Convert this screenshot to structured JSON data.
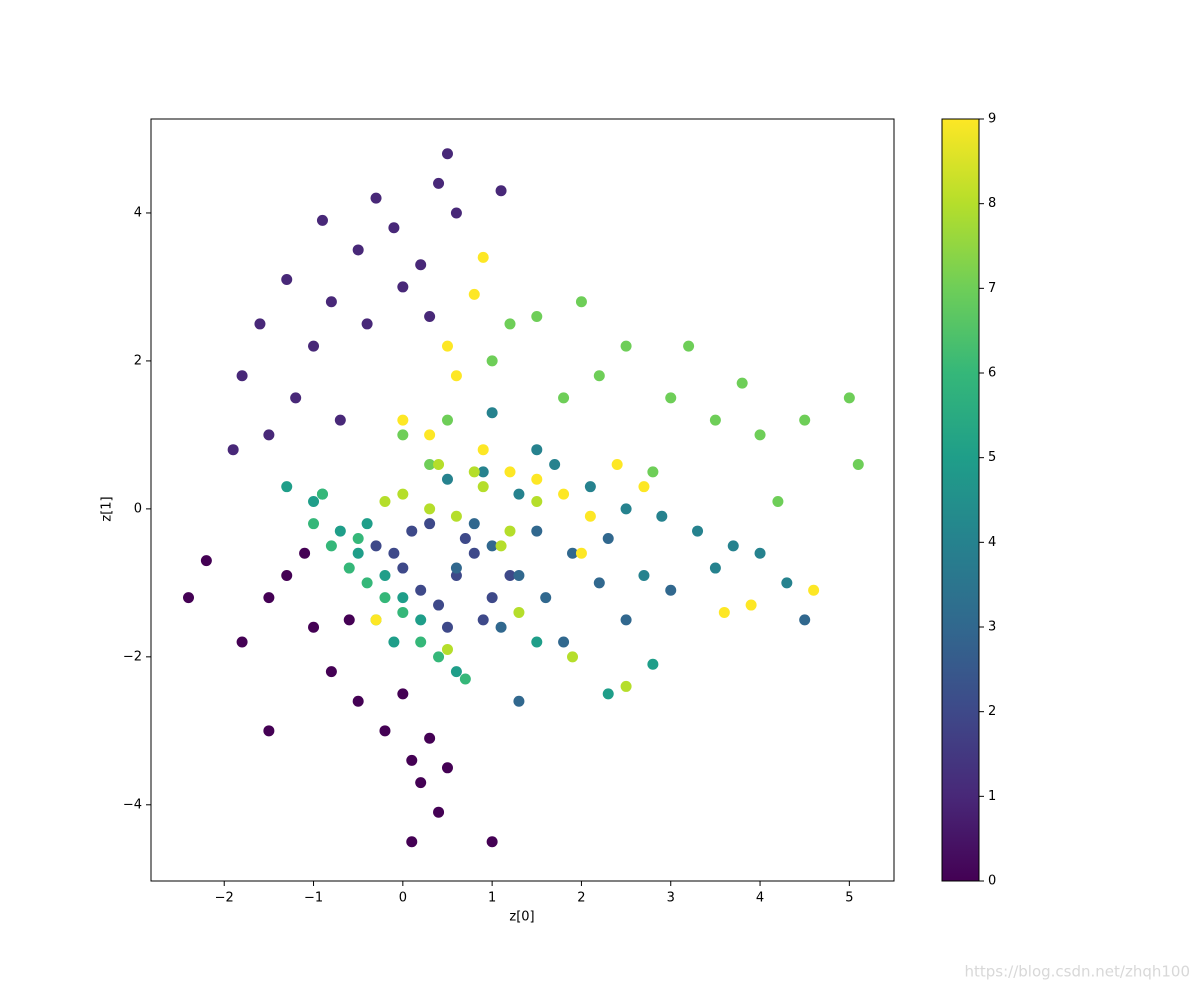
{
  "chart_data": {
    "type": "scatter",
    "xlabel": "z[0]",
    "ylabel": "z[1]",
    "xlim": [
      -2.82,
      5.5
    ],
    "ylim": [
      -5.03,
      5.27
    ],
    "xticks": [
      {
        "value": -2,
        "label": "−2"
      },
      {
        "value": -1,
        "label": "−1"
      },
      0,
      1,
      2,
      3,
      4,
      5
    ],
    "yticks": [
      {
        "value": -4,
        "label": "−4"
      },
      {
        "value": -2,
        "label": "−2"
      },
      0,
      2,
      4
    ],
    "clim": [
      0,
      9
    ],
    "cticks": [
      0,
      1,
      2,
      3,
      4,
      5,
      6,
      7,
      8,
      9
    ],
    "series": [
      {
        "c": 0,
        "color": "#440154",
        "x": [
          -1.3,
          -1.5,
          -2.2,
          -1.0,
          -0.8,
          -0.5,
          -0.2,
          0.1,
          0.3,
          0.5,
          -1.8,
          -2.4,
          -1.1,
          -0.6,
          0.0,
          0.2,
          0.4,
          0.1,
          1.0,
          -1.5
        ],
        "values": [
          -0.9,
          -1.2,
          -0.7,
          -1.6,
          -2.2,
          -2.6,
          -3.0,
          -3.4,
          -3.1,
          -3.5,
          -1.8,
          -1.2,
          -0.6,
          -1.5,
          -2.5,
          -3.7,
          -4.1,
          -4.5,
          -4.5,
          -3.0
        ]
      },
      {
        "c": 1,
        "color": "#482878",
        "x": [
          -1.2,
          -1.0,
          -0.8,
          -0.5,
          -0.3,
          -0.1,
          0.2,
          0.4,
          0.5,
          -1.5,
          -1.8,
          -1.9,
          -0.7,
          -0.4,
          0.0,
          -1.3,
          0.6,
          1.1,
          -1.6,
          -0.9,
          0.3
        ],
        "values": [
          1.5,
          2.2,
          2.8,
          3.5,
          4.2,
          3.8,
          3.3,
          4.4,
          4.8,
          1.0,
          1.8,
          0.8,
          1.2,
          2.5,
          3.0,
          3.1,
          4.0,
          4.3,
          2.5,
          3.9,
          2.6
        ]
      },
      {
        "c": 2,
        "color": "#3e4989",
        "x": [
          -0.3,
          0.0,
          0.2,
          0.4,
          0.6,
          0.8,
          1.0,
          0.1,
          -0.1,
          0.5,
          0.3,
          0.7,
          1.2,
          0.9
        ],
        "values": [
          -0.5,
          -0.8,
          -1.1,
          -1.3,
          -0.9,
          -0.6,
          -1.2,
          -0.3,
          -0.6,
          -1.6,
          -0.2,
          -0.4,
          -0.9,
          -1.5
        ]
      },
      {
        "c": 3,
        "color": "#31688e",
        "x": [
          1.0,
          1.3,
          1.6,
          1.9,
          2.2,
          2.5,
          0.8,
          1.1,
          1.5,
          1.8,
          2.3,
          4.5,
          3.0,
          1.3,
          0.6
        ],
        "values": [
          -0.5,
          -0.9,
          -1.2,
          -0.6,
          -1.0,
          -1.5,
          -0.2,
          -1.6,
          -0.3,
          -1.8,
          -0.4,
          -1.5,
          -1.1,
          -2.6,
          -0.8
        ]
      },
      {
        "c": 4,
        "color": "#26828e",
        "x": [
          0.5,
          0.9,
          1.3,
          1.7,
          2.1,
          2.5,
          2.9,
          3.3,
          3.7,
          4.0,
          3.5,
          2.7,
          1.5,
          1.0,
          4.3
        ],
        "values": [
          0.4,
          0.5,
          0.2,
          0.6,
          0.3,
          0.0,
          -0.1,
          -0.3,
          -0.5,
          -0.6,
          -0.8,
          -0.9,
          0.8,
          1.3,
          -1.0
        ]
      },
      {
        "c": 5,
        "color": "#1f9e89",
        "x": [
          -1.3,
          -1.0,
          -0.7,
          -0.5,
          -0.2,
          0.0,
          0.2,
          -0.9,
          -0.4,
          2.3,
          2.8,
          0.6,
          -0.1,
          1.5
        ],
        "values": [
          0.3,
          0.1,
          -0.3,
          -0.6,
          -0.9,
          -1.2,
          -1.5,
          0.2,
          -0.2,
          -2.5,
          -2.1,
          -2.2,
          -1.8,
          -1.8
        ]
      },
      {
        "c": 6,
        "color": "#35b779",
        "x": [
          -1.0,
          -0.8,
          -0.6,
          -0.4,
          -0.2,
          0.0,
          0.2,
          -0.5,
          -0.9,
          0.4,
          0.7,
          -0.3
        ],
        "values": [
          -0.2,
          -0.5,
          -0.8,
          -1.0,
          -1.2,
          -1.4,
          -1.8,
          -0.4,
          0.2,
          -2.0,
          -2.3,
          -1.5
        ]
      },
      {
        "c": 7,
        "color": "#6ece58",
        "x": [
          1.0,
          1.5,
          2.0,
          2.5,
          3.0,
          3.5,
          4.0,
          4.5,
          5.0,
          5.1,
          1.8,
          2.2,
          0.5,
          0.0,
          3.2,
          4.2,
          2.8,
          1.2,
          3.8,
          0.3
        ],
        "values": [
          2.0,
          2.6,
          2.8,
          2.2,
          1.5,
          1.2,
          1.0,
          1.2,
          1.5,
          0.6,
          1.5,
          1.8,
          1.2,
          1.0,
          2.2,
          0.1,
          0.5,
          2.5,
          1.7,
          0.6
        ]
      },
      {
        "c": 8,
        "color": "#b5de2b",
        "x": [
          0.0,
          0.3,
          0.6,
          0.9,
          1.2,
          1.5,
          0.4,
          0.8,
          1.1,
          -0.2,
          0.5,
          2.5,
          1.9,
          1.3
        ],
        "values": [
          0.2,
          0.0,
          -0.1,
          0.3,
          -0.3,
          0.1,
          0.6,
          0.5,
          -0.5,
          0.1,
          -1.9,
          -2.4,
          -2.0,
          -1.4
        ]
      },
      {
        "c": 9,
        "color": "#fde725",
        "x": [
          0.0,
          0.3,
          0.6,
          0.9,
          1.2,
          1.5,
          1.8,
          2.1,
          2.4,
          2.7,
          0.5,
          0.8,
          3.6,
          4.6,
          0.9,
          2.0,
          3.9,
          -0.3
        ],
        "values": [
          1.2,
          1.0,
          1.8,
          0.8,
          0.5,
          0.4,
          0.2,
          -0.1,
          0.6,
          0.3,
          2.2,
          2.9,
          -1.4,
          -1.1,
          3.4,
          -0.6,
          -1.3,
          -1.5
        ]
      }
    ]
  },
  "watermark": "https://blog.csdn.net/zhqh100"
}
